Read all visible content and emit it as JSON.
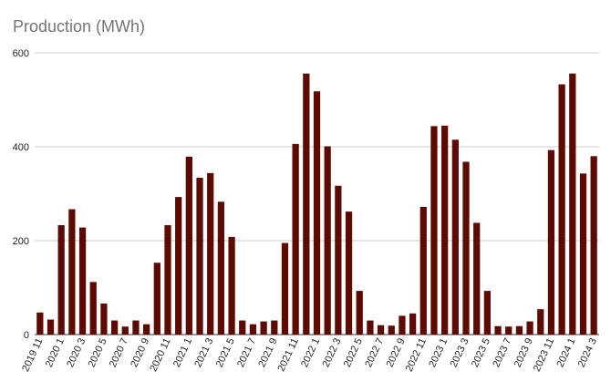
{
  "chart_data": {
    "type": "bar",
    "title": "Production (MWh)",
    "xlabel": "",
    "ylabel": "",
    "ylim": [
      0,
      600
    ],
    "yticks": [
      0,
      200,
      400,
      600
    ],
    "grid": true,
    "bar_color": "#5c0a02",
    "categories": [
      "2019 11",
      "2019 12",
      "2020 1",
      "2020 2",
      "2020 3",
      "2020 4",
      "2020 5",
      "2020 6",
      "2020 7",
      "2020 8",
      "2020 9",
      "2020 10",
      "2020 11",
      "2020 12",
      "2021 1",
      "2021 2",
      "2021 3",
      "2021 4",
      "2021 5",
      "2021 6",
      "2021 7",
      "2021 8",
      "2021 9",
      "2021 10",
      "2021 11",
      "2021 12",
      "2022 1",
      "2022 2",
      "2022 3",
      "2022 4",
      "2022 5",
      "2022 6",
      "2022 7",
      "2022 8",
      "2022 9",
      "2022 10",
      "2022 11",
      "2022 12",
      "2023 1",
      "2023 2",
      "2023 3",
      "2023 4",
      "2023 5",
      "2023 6",
      "2023 7",
      "2023 8",
      "2023 9",
      "2023 10",
      "2023 11",
      "2023 12",
      "2024 1",
      "2024 2",
      "2024 3"
    ],
    "values": [
      47,
      32,
      233,
      267,
      228,
      112,
      66,
      30,
      17,
      30,
      22,
      153,
      233,
      293,
      379,
      334,
      344,
      283,
      208,
      30,
      22,
      28,
      30,
      195,
      406,
      556,
      518,
      401,
      317,
      262,
      93,
      30,
      20,
      19,
      40,
      45,
      272,
      444,
      445,
      415,
      368,
      238,
      93,
      18,
      17,
      18,
      28,
      54,
      393,
      533,
      556,
      343,
      380
    ],
    "shown_xtick_every": 2
  }
}
